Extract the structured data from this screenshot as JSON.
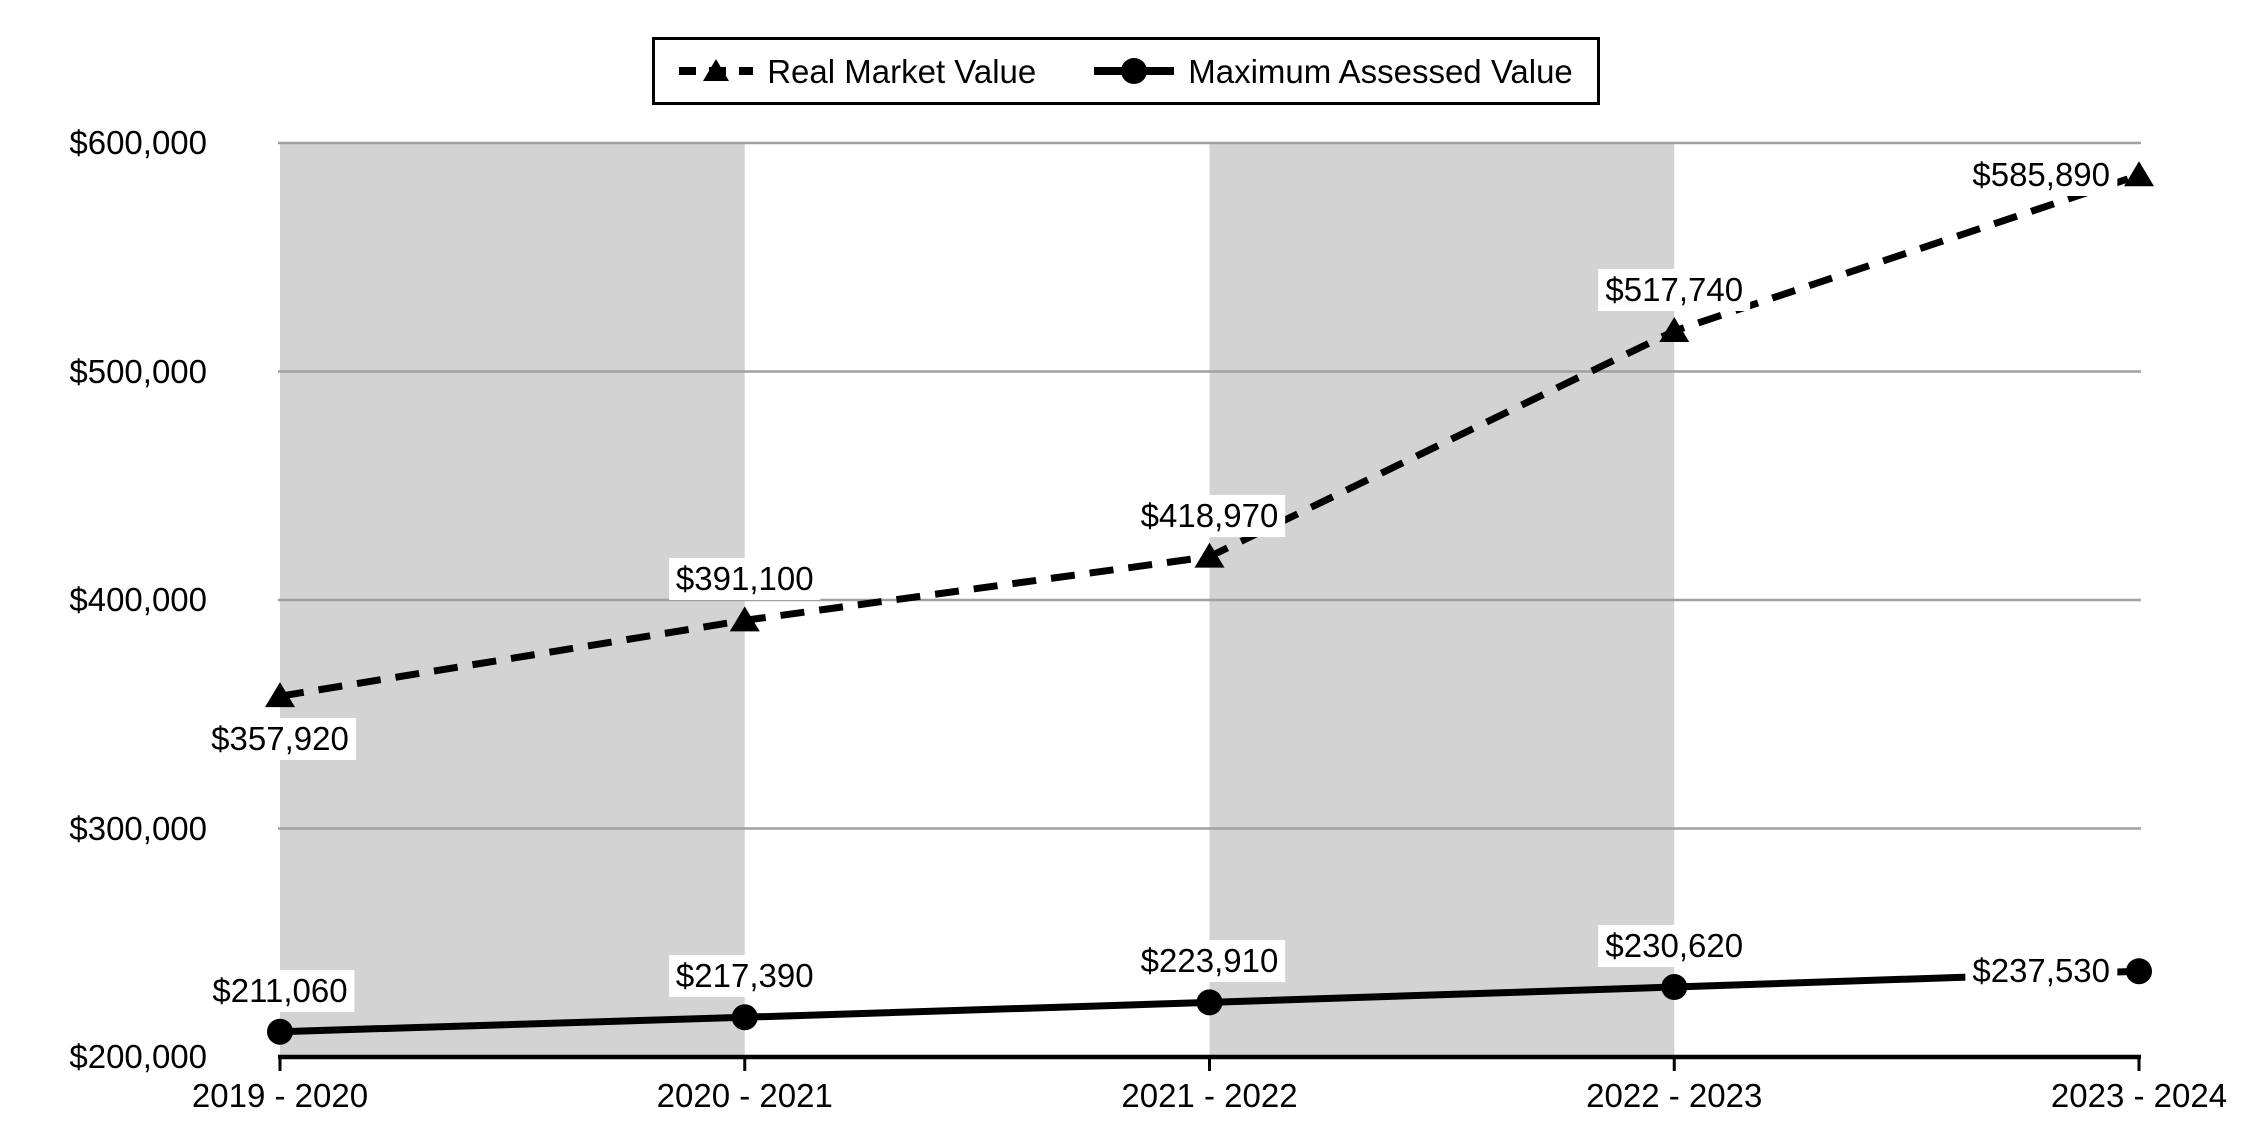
{
  "chart_data": {
    "type": "line",
    "title": "",
    "categories": [
      "2019 - 2020",
      "2020 - 2021",
      "2021 - 2022",
      "2022 - 2023",
      "2023 - 2024"
    ],
    "series": [
      {
        "name": "Real Market Value",
        "values": [
          357920,
          391100,
          418970,
          517740,
          585890
        ],
        "labels": [
          "$357,920",
          "$391,100",
          "$418,970",
          "$517,740",
          "$585,890"
        ],
        "line_style": "dashed",
        "marker": "triangle",
        "label_placements": [
          "below",
          "above",
          "above",
          "above",
          "left"
        ]
      },
      {
        "name": "Maximum Assessed Value",
        "values": [
          211060,
          217390,
          223910,
          230620,
          237530
        ],
        "labels": [
          "$211,060",
          "$217,390",
          "$223,910",
          "$230,620",
          "$237,530"
        ],
        "line_style": "solid",
        "marker": "circle",
        "label_placements": [
          "above",
          "above",
          "above",
          "above",
          "left"
        ]
      }
    ],
    "y_axis": {
      "min": 200000,
      "max": 600000,
      "tick_step": 100000,
      "tick_labels": [
        "$200,000",
        "$300,000",
        "$400,000",
        "$500,000",
        "$600,000"
      ]
    },
    "x_axis": {
      "tick_labels": [
        "2019 - 2020",
        "2020 - 2021",
        "2021 - 2022",
        "2022 - 2023",
        "2023 - 2024"
      ]
    },
    "legend": {
      "position": "top",
      "entries": [
        "Real Market Value",
        "Maximum Assessed Value"
      ]
    },
    "plot_bands": {
      "shaded_intervals": [
        [
          0,
          1
        ],
        [
          2,
          3
        ]
      ],
      "color": "#d3d3d3"
    },
    "grid": true,
    "colors": {
      "series_line": "#000000",
      "gridline": "#a0a0a0",
      "axis_line": "#000000",
      "label_background": "#ffffff",
      "text": "#000000",
      "plot_background": "#ffffff"
    }
  }
}
